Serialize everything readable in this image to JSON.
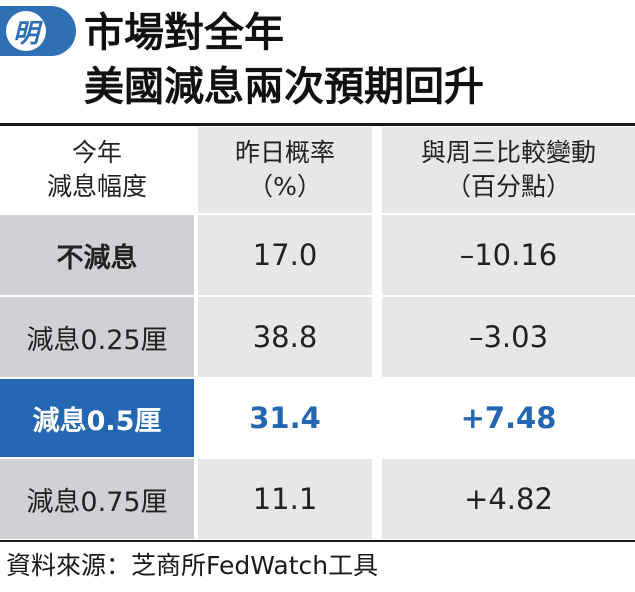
{
  "title": {
    "line1": "市場對全年",
    "line2": "美國減息兩次預期回升",
    "logo_char": "明"
  },
  "colors": {
    "accent": "#2367b2",
    "label_bg": "#cfd1d4",
    "value_bg": "#e6e7e9"
  },
  "chart_data": {
    "type": "table",
    "columns": [
      {
        "line1": "今年",
        "line2": "減息幅度"
      },
      {
        "line1": "昨日概率",
        "line2": "（%）"
      },
      {
        "line1": "與周三比較變動",
        "line2": "（百分點）"
      }
    ],
    "rows": [
      {
        "label": "不減息",
        "prob": "17.0",
        "change": "–10.16"
      },
      {
        "label": "減息0.25厘",
        "prob": "38.8",
        "change": "–3.03"
      },
      {
        "label": "減息0.5厘",
        "prob": "31.4",
        "change": "+7.48",
        "highlight": true
      },
      {
        "label": "減息0.75厘",
        "prob": "11.1",
        "change": "+4.82"
      }
    ],
    "values": {
      "probability_pct": [
        17.0,
        38.8,
        31.4,
        11.1
      ],
      "change_pp": [
        -10.16,
        -3.03,
        7.48,
        4.82
      ]
    }
  },
  "source": "資料來源：芝商所FedWatch工具"
}
